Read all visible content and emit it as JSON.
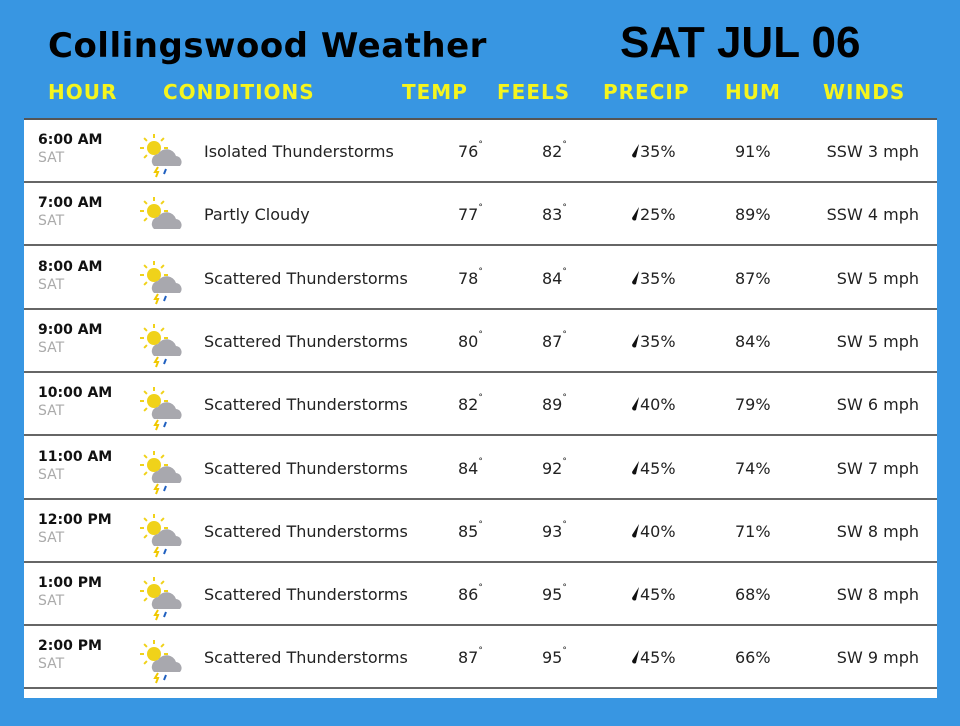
{
  "title": "Collingswood Weather",
  "date": "SAT JUL 06",
  "headers": {
    "hour": "HOUR",
    "conditions": "CONDITIONS",
    "temp": "TEMP",
    "feels": "FEELS",
    "precip": "PRECIP",
    "hum": "HUM",
    "winds": "WINDS"
  },
  "colors": {
    "background": "#3896e2",
    "header_text": "#f5f51e"
  },
  "rows": [
    {
      "time": "6:00 AM",
      "day": "SAT",
      "icon": "isolated-thunderstorms-icon",
      "condition": "Isolated Thunderstorms",
      "temp": "76",
      "feels": "82",
      "precip": "35%",
      "hum": "91%",
      "wind": "SSW 3 mph"
    },
    {
      "time": "7:00 AM",
      "day": "SAT",
      "icon": "partly-cloudy-icon",
      "condition": "Partly Cloudy",
      "temp": "77",
      "feels": "83",
      "precip": "25%",
      "hum": "89%",
      "wind": "SSW 4 mph"
    },
    {
      "time": "8:00 AM",
      "day": "SAT",
      "icon": "scattered-thunderstorms-icon",
      "condition": "Scattered Thunderstorms",
      "temp": "78",
      "feels": "84",
      "precip": "35%",
      "hum": "87%",
      "wind": "SW 5 mph"
    },
    {
      "time": "9:00 AM",
      "day": "SAT",
      "icon": "scattered-thunderstorms-icon",
      "condition": "Scattered Thunderstorms",
      "temp": "80",
      "feels": "87",
      "precip": "35%",
      "hum": "84%",
      "wind": "SW 5 mph"
    },
    {
      "time": "10:00 AM",
      "day": "SAT",
      "icon": "scattered-thunderstorms-icon",
      "condition": "Scattered Thunderstorms",
      "temp": "82",
      "feels": "89",
      "precip": "40%",
      "hum": "79%",
      "wind": "SW 6 mph"
    },
    {
      "time": "11:00 AM",
      "day": "SAT",
      "icon": "scattered-thunderstorms-icon",
      "condition": "Scattered Thunderstorms",
      "temp": "84",
      "feels": "92",
      "precip": "45%",
      "hum": "74%",
      "wind": "SW 7 mph"
    },
    {
      "time": "12:00 PM",
      "day": "SAT",
      "icon": "scattered-thunderstorms-icon",
      "condition": "Scattered Thunderstorms",
      "temp": "85",
      "feels": "93",
      "precip": "40%",
      "hum": "71%",
      "wind": "SW 8 mph"
    },
    {
      "time": "1:00 PM",
      "day": "SAT",
      "icon": "scattered-thunderstorms-icon",
      "condition": "Scattered Thunderstorms",
      "temp": "86",
      "feels": "95",
      "precip": "45%",
      "hum": "68%",
      "wind": "SW 8 mph"
    },
    {
      "time": "2:00 PM",
      "day": "SAT",
      "icon": "scattered-thunderstorms-icon",
      "condition": "Scattered Thunderstorms",
      "temp": "87",
      "feels": "95",
      "precip": "45%",
      "hum": "66%",
      "wind": "SW 9 mph"
    }
  ]
}
